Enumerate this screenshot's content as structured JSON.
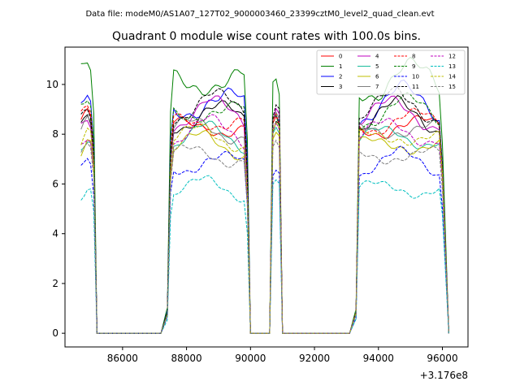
{
  "header": {
    "data_file": "Data file: modeM0/AS1A07_127T02_9000003460_23399cztM0_level2_quad_clean.evt"
  },
  "chart_data": {
    "type": "line",
    "title": "Quadrant 0 module wise count rates with 100.0s bins.",
    "xlabel": "",
    "ylabel": "",
    "x_offset_label": "+3.176e8",
    "xlim": [
      84200,
      96800
    ],
    "ylim": [
      -0.55,
      11.5
    ],
    "x_ticks": [
      86000,
      88000,
      90000,
      92000,
      94000,
      96000
    ],
    "x_tick_labels": [
      "86000",
      "88000",
      "90000",
      "92000",
      "94000",
      "96000"
    ],
    "y_ticks": [
      0,
      2,
      4,
      6,
      8,
      10
    ],
    "y_tick_labels": [
      "0",
      "2",
      "4",
      "6",
      "8",
      "10"
    ],
    "legend_position": "top-right",
    "segments": [
      {
        "start": 84700,
        "end": 85100,
        "bins": 5
      },
      {
        "start": 87400,
        "end": 89900,
        "bins": 26
      },
      {
        "start": 90700,
        "end": 90900,
        "bins": 3
      },
      {
        "start": 93300,
        "end": 96000,
        "bins": 28
      }
    ],
    "gaps": [
      {
        "start": 85300,
        "end": 87200
      },
      {
        "start": 90100,
        "end": 90600
      },
      {
        "start": 91100,
        "end": 93100
      }
    ],
    "series": [
      {
        "name": "0",
        "color": "#ff0000",
        "dash": "solid",
        "mean": 8.0,
        "amp": 0.45,
        "phase": 0.3
      },
      {
        "name": "1",
        "color": "#008000",
        "dash": "solid",
        "mean": 9.8,
        "amp": 0.7,
        "phase": 1.1
      },
      {
        "name": "2",
        "color": "#0000ff",
        "dash": "solid",
        "mean": 8.9,
        "amp": 0.6,
        "phase": 2.0
      },
      {
        "name": "3",
        "color": "#000000",
        "dash": "solid",
        "mean": 8.4,
        "amp": 0.5,
        "phase": 2.7
      },
      {
        "name": "4",
        "color": "#bf00bf",
        "dash": "solid",
        "mean": 8.5,
        "amp": 0.5,
        "phase": 3.4
      },
      {
        "name": "5",
        "color": "#1abc9c",
        "dash": "solid",
        "mean": 7.6,
        "amp": 0.4,
        "phase": 4.2
      },
      {
        "name": "6",
        "color": "#bfbf00",
        "dash": "solid",
        "mean": 7.3,
        "amp": 0.4,
        "phase": 5.0
      },
      {
        "name": "7",
        "color": "#808080",
        "dash": "solid",
        "mean": 7.9,
        "amp": 0.45,
        "phase": 5.8
      },
      {
        "name": "8",
        "color": "#ff0000",
        "dash": "dashed",
        "mean": 8.2,
        "amp": 0.45,
        "phase": 0.7
      },
      {
        "name": "9",
        "color": "#008000",
        "dash": "dashed",
        "mean": 8.6,
        "amp": 0.5,
        "phase": 1.5
      },
      {
        "name": "10",
        "color": "#0000ff",
        "dash": "dashed",
        "mean": 6.6,
        "amp": 0.4,
        "phase": 2.3
      },
      {
        "name": "11",
        "color": "#000000",
        "dash": "dashed",
        "mean": 8.8,
        "amp": 0.5,
        "phase": 3.1
      },
      {
        "name": "12",
        "color": "#bf00bf",
        "dash": "dashed",
        "mean": 7.8,
        "amp": 0.45,
        "phase": 3.9
      },
      {
        "name": "13",
        "color": "#00bfbf",
        "dash": "dashed",
        "mean": 5.6,
        "amp": 0.35,
        "phase": 4.6
      },
      {
        "name": "14",
        "color": "#bfbf00",
        "dash": "dashed",
        "mean": 7.6,
        "amp": 0.4,
        "phase": 5.3
      },
      {
        "name": "15",
        "color": "#808080",
        "dash": "dashed",
        "mean": 6.9,
        "amp": 0.4,
        "phase": 6.0
      }
    ]
  }
}
